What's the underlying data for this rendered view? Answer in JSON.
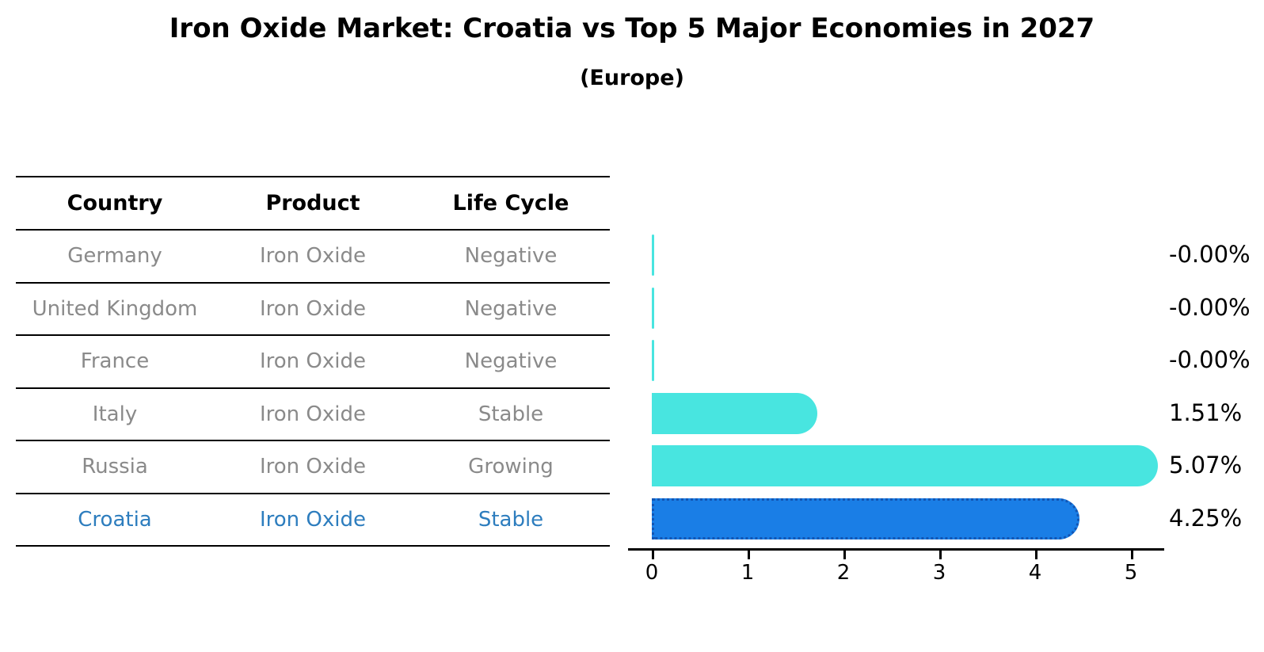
{
  "title": "Iron Oxide Market: Croatia vs Top 5 Major Economies in 2027",
  "subtitle": "(Europe)",
  "colors": {
    "bar_default": "#48e5e0",
    "bar_highlight_fill": "#1a7ee6",
    "bar_highlight_border": "#1356b4",
    "highlight_text": "#2d7dbe",
    "table_body_text": "#8a8a8a",
    "table_header_text": "#000000",
    "axis": "#000000",
    "background": "#ffffff"
  },
  "table": {
    "columns": [
      "Country",
      "Product",
      "Life Cycle"
    ],
    "rows": [
      {
        "country": "Germany",
        "product": "Iron Oxide",
        "life_cycle": "Negative",
        "highlight": false
      },
      {
        "country": "United Kingdom",
        "product": "Iron Oxide",
        "life_cycle": "Negative",
        "highlight": false
      },
      {
        "country": "France",
        "product": "Iron Oxide",
        "life_cycle": "Negative",
        "highlight": false
      },
      {
        "country": "Italy",
        "product": "Iron Oxide",
        "life_cycle": "Stable",
        "highlight": false
      },
      {
        "country": "Russia",
        "product": "Iron Oxide",
        "life_cycle": "Growing",
        "highlight": false
      },
      {
        "country": "Croatia",
        "product": "Iron Oxide",
        "life_cycle": "Stable",
        "highlight": true
      }
    ]
  },
  "chart_data": {
    "type": "bar",
    "orientation": "horizontal",
    "title": "Iron Oxide Market: Croatia vs Top 5 Major Economies in 2027",
    "subtitle": "(Europe)",
    "categories": [
      "Germany",
      "United Kingdom",
      "France",
      "Italy",
      "Russia",
      "Croatia"
    ],
    "values": [
      -0.0,
      -0.0,
      -0.0,
      1.51,
      5.07,
      4.25
    ],
    "value_labels": [
      "-0.00%",
      "-0.00%",
      "-0.00%",
      "1.51%",
      "5.07%",
      "4.25%"
    ],
    "highlight_category": "Croatia",
    "x_ticks": [
      "0",
      "1",
      "2",
      "3",
      "4",
      "5"
    ],
    "xlim": [
      -0.25,
      5.35
    ],
    "grid": false,
    "legend": false,
    "unit": "percent"
  }
}
